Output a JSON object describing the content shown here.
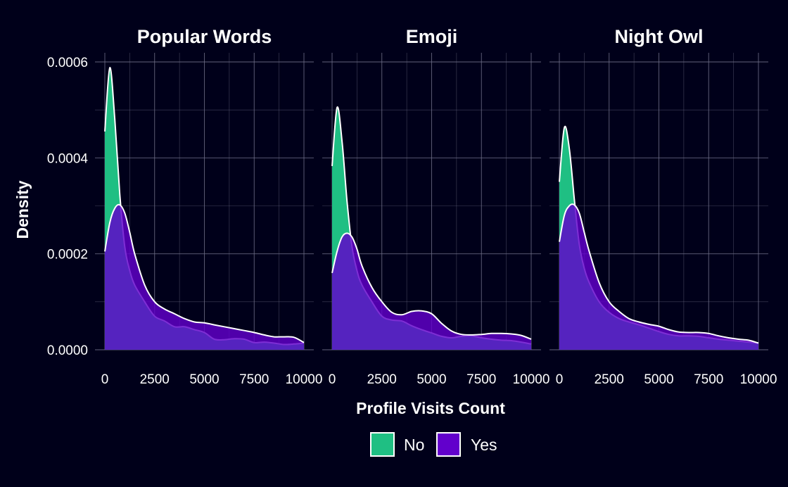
{
  "chart_data": {
    "type": "area",
    "subtype": "density",
    "xlabel": "Profile Visits Count",
    "ylabel": "Density",
    "xlim": [
      0,
      10000
    ],
    "ylim": [
      0,
      0.0006
    ],
    "x_ticks": [
      "0",
      "2500",
      "5000",
      "7500",
      "10000"
    ],
    "x_tick_values": [
      0,
      2500,
      5000,
      7500,
      10000
    ],
    "y_ticks": [
      "0.0000",
      "0.0002",
      "0.0004",
      "0.0006"
    ],
    "y_tick_values": [
      0,
      0.0002,
      0.0004,
      0.0006
    ],
    "grid": true,
    "legend_position": "bottom",
    "legend": [
      {
        "label": "No",
        "color": "#1fbf83"
      },
      {
        "label": "Yes",
        "color": "#6200cc"
      }
    ],
    "colors": {
      "background": "#00001a",
      "grid": "#6e6e86",
      "no_fill": "#1fbf83",
      "yes_fill": "#6200cc",
      "outline": "#ffffff",
      "text": "#ffffff"
    },
    "panels": [
      {
        "title": "Popular Words",
        "series": [
          {
            "name": "No",
            "x": [
              0,
              250,
              500,
              750,
              1000,
              1250,
              1500,
              2000,
              2500,
              3000,
              3500,
              4000,
              4500,
              5000,
              5500,
              6000,
              6500,
              7000,
              7500,
              8000,
              8500,
              9000,
              9500,
              10000
            ],
            "y": [
              0.000455,
              0.000588,
              0.00048,
              0.000325,
              0.000215,
              0.000165,
              0.000135,
              0.0001,
              7e-05,
              6e-05,
              4.8e-05,
              4.8e-05,
              4.2e-05,
              3.6e-05,
              2.2e-05,
              2.1e-05,
              2.3e-05,
              2.2e-05,
              1.5e-05,
              1.6e-05,
              1.4e-05,
              1.1e-05,
              1.2e-05,
              1.4e-05
            ]
          },
          {
            "name": "Yes",
            "x": [
              0,
              250,
              500,
              750,
              1000,
              1250,
              1500,
              2000,
              2500,
              3000,
              3500,
              4000,
              4500,
              5000,
              5500,
              6000,
              6500,
              7000,
              7500,
              8000,
              8500,
              9000,
              9500,
              10000
            ],
            "y": [
              0.000205,
              0.000265,
              0.000295,
              0.000302,
              0.000285,
              0.000245,
              0.0002,
              0.000135,
              0.0001,
              8.5e-05,
              7.5e-05,
              6.5e-05,
              5.8e-05,
              5.6e-05,
              5.2e-05,
              4.8e-05,
              4.4e-05,
              4e-05,
              3.6e-05,
              3.1e-05,
              2.7e-05,
              2.7e-05,
              2.6e-05,
              1.5e-05
            ]
          }
        ]
      },
      {
        "title": "Emoji",
        "series": [
          {
            "name": "No",
            "x": [
              0,
              250,
              500,
              750,
              1000,
              1250,
              1500,
              2000,
              2500,
              3000,
              3500,
              4000,
              4500,
              5000,
              5500,
              6000,
              6500,
              7000,
              7500,
              8000,
              8500,
              9000,
              9500,
              10000
            ],
            "y": [
              0.000383,
              0.000505,
              0.000435,
              0.00031,
              0.000215,
              0.000165,
              0.000135,
              0.0001,
              7e-05,
              6.2e-05,
              6e-05,
              5e-05,
              4.2e-05,
              3.5e-05,
              2.8e-05,
              2.5e-05,
              2.8e-05,
              2.9e-05,
              2.5e-05,
              2.2e-05,
              2e-05,
              1.9e-05,
              1.6e-05,
              1.2e-05
            ]
          },
          {
            "name": "Yes",
            "x": [
              0,
              250,
              500,
              750,
              1000,
              1250,
              1500,
              2000,
              2500,
              3000,
              3500,
              4000,
              4500,
              5000,
              5500,
              6000,
              6500,
              7000,
              7500,
              8000,
              8500,
              9000,
              9500,
              10000
            ],
            "y": [
              0.00016,
              0.000205,
              0.000235,
              0.000243,
              0.000235,
              0.00021,
              0.000175,
              0.00013,
              0.0001,
              7.8e-05,
              7.3e-05,
              8e-05,
              8.1e-05,
              7.5e-05,
              5.5e-05,
              3.9e-05,
              3.2e-05,
              3.1e-05,
              3.2e-05,
              3.4e-05,
              3.4e-05,
              3.3e-05,
              3e-05,
              2.2e-05
            ]
          }
        ]
      },
      {
        "title": "Night Owl",
        "series": [
          {
            "name": "No",
            "x": [
              0,
              250,
              500,
              750,
              1000,
              1250,
              1500,
              2000,
              2500,
              3000,
              3500,
              4000,
              4500,
              5000,
              5500,
              6000,
              6500,
              7000,
              7500,
              8000,
              8500,
              9000,
              9500,
              10000
            ],
            "y": [
              0.00035,
              0.000463,
              0.00042,
              0.000315,
              0.00022,
              0.00017,
              0.00014,
              0.0001,
              7.8e-05,
              6.5e-05,
              5.8e-05,
              5.2e-05,
              4.5e-05,
              3.8e-05,
              3.2e-05,
              2.9e-05,
              2.9e-05,
              2.8e-05,
              2.5e-05,
              2.2e-05,
              2e-05,
              1.8e-05,
              1.6e-05,
              1.4e-05
            ]
          },
          {
            "name": "Yes",
            "x": [
              0,
              250,
              500,
              750,
              1000,
              1250,
              1500,
              2000,
              2500,
              3000,
              3500,
              4000,
              4500,
              5000,
              5500,
              6000,
              6500,
              7000,
              7500,
              8000,
              8500,
              9000,
              9500,
              10000
            ],
            "y": [
              0.000225,
              0.00028,
              0.0003,
              0.000302,
              0.000285,
              0.000245,
              0.000205,
              0.00014,
              0.0001,
              8e-05,
              6.5e-05,
              5.8e-05,
              5.3e-05,
              4.9e-05,
              4.2e-05,
              3.7e-05,
              3.6e-05,
              3.6e-05,
              3.4e-05,
              2.9e-05,
              2.5e-05,
              2.2e-05,
              2e-05,
              1.4e-05
            ]
          }
        ]
      }
    ]
  }
}
